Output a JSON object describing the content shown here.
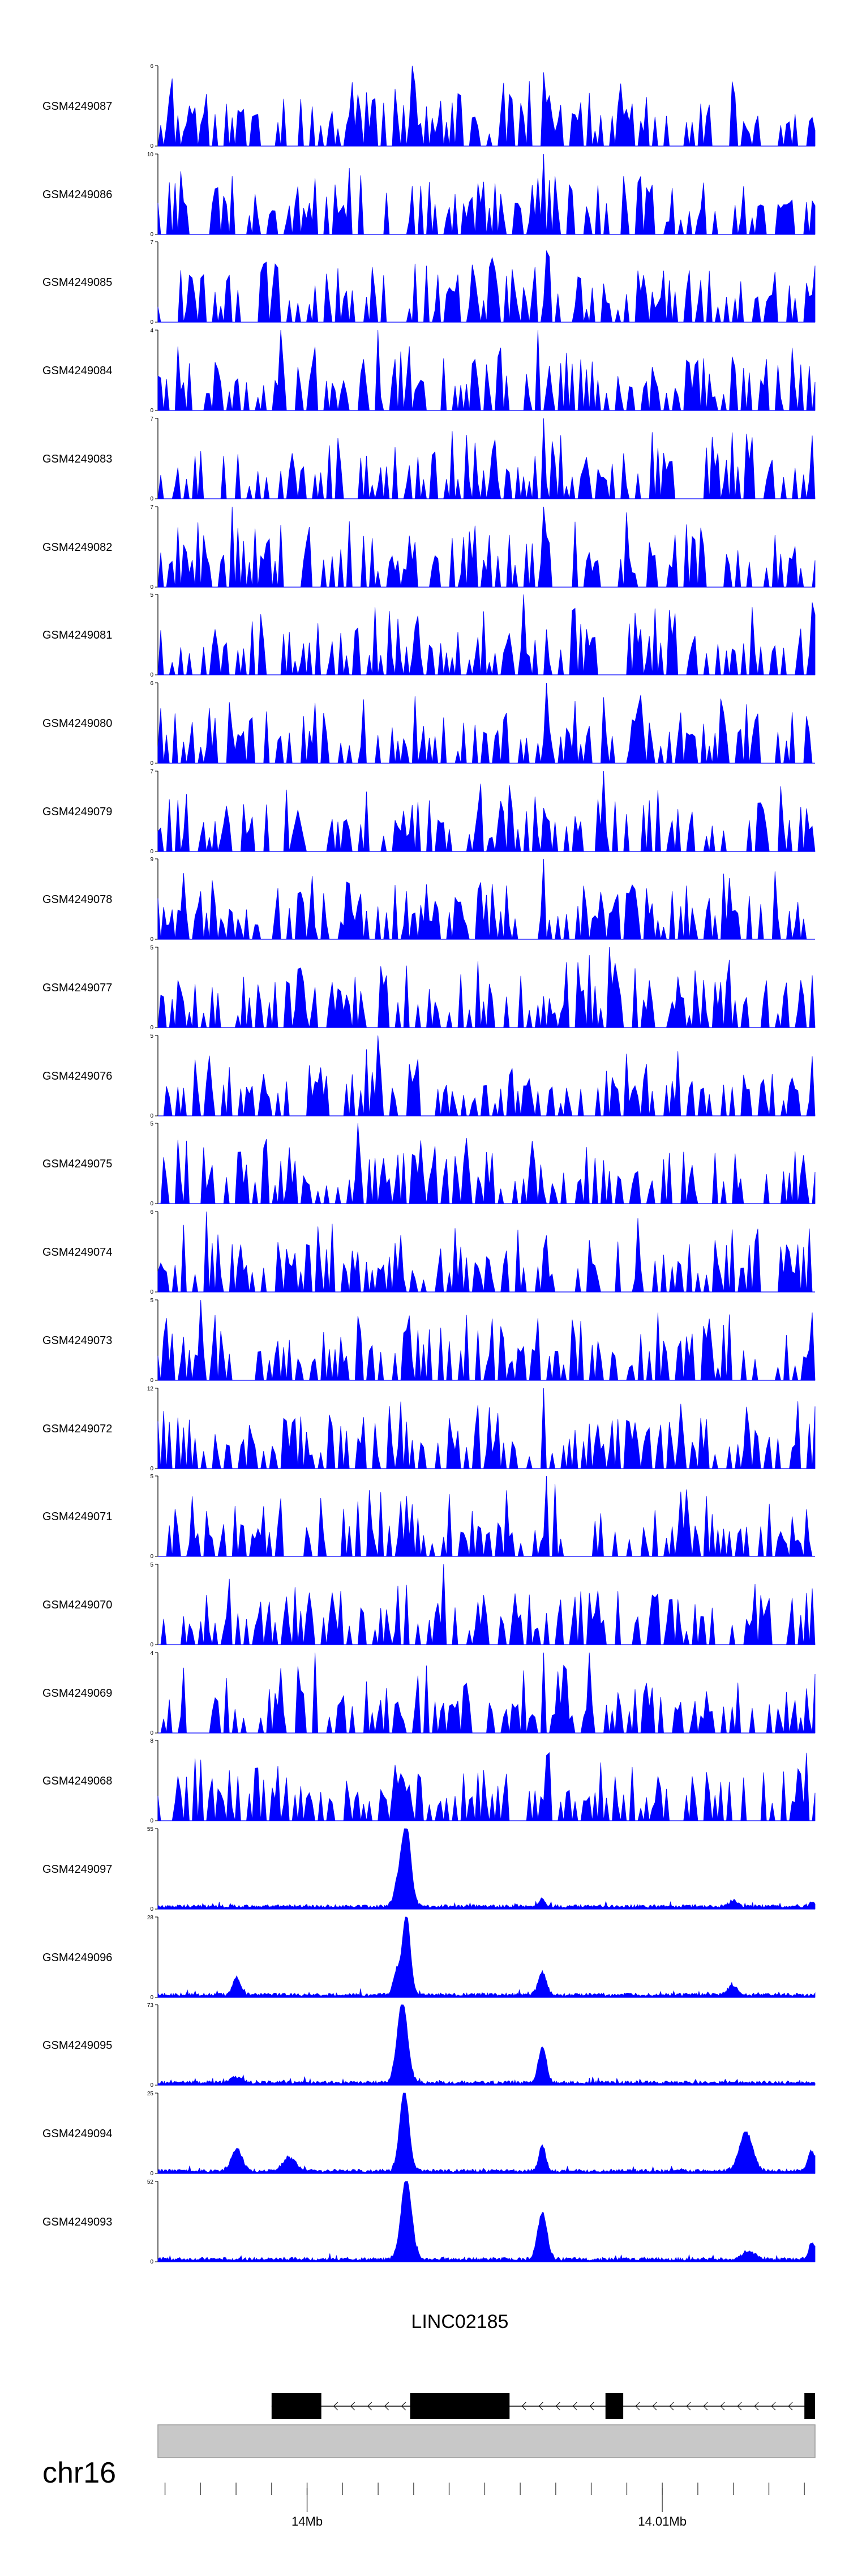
{
  "chart_data": {
    "type": "area",
    "title": "",
    "chromosome": "chr16",
    "x_ticks": [
      {
        "label": "14Mb",
        "value": 14.0
      },
      {
        "label": "14.01Mb",
        "value": 14.01
      }
    ],
    "xlim": [
      13.9958,
      14.0143
    ],
    "gene": {
      "name": "LINC02185",
      "strand": "-",
      "exons": [
        [
          13.999,
          14.0004
        ],
        [
          14.0029,
          14.0057
        ],
        [
          14.0084,
          14.0089
        ],
        [
          14.014,
          14.0143
        ]
      ]
    },
    "series": [
      {
        "name": "GSM4249087",
        "ymax": 6,
        "ytick_top": "6",
        "ytick_bottom": "0",
        "kind": "sparse",
        "seed": 87,
        "spikes": [
          [
            0.385,
            6.0
          ],
          [
            0.585,
            5.5
          ]
        ]
      },
      {
        "name": "GSM4249086",
        "ymax": 10,
        "ytick_top": "10",
        "ytick_bottom": "0",
        "kind": "sparse",
        "seed": 86,
        "spikes": [
          [
            0.585,
            10.0
          ],
          [
            0.385,
            6.0
          ],
          [
            0.58,
            7.0
          ]
        ]
      },
      {
        "name": "GSM4249085",
        "ymax": 7,
        "ytick_top": "7",
        "ytick_bottom": "0",
        "kind": "sparse",
        "seed": 85,
        "spikes": [
          [
            0.585,
            7.0
          ],
          [
            0.59,
            6.2
          ],
          [
            0.48,
            5.0
          ]
        ]
      },
      {
        "name": "GSM4249084",
        "ymax": 4,
        "ytick_top": "4",
        "ytick_bottom": "0",
        "kind": "sparse",
        "seed": 84,
        "spikes": [
          [
            0.185,
            4.0
          ],
          [
            0.58,
            4.0
          ],
          [
            0.335,
            4.0
          ]
        ]
      },
      {
        "name": "GSM4249083",
        "ymax": 7,
        "ytick_top": "7",
        "ytick_bottom": "0",
        "kind": "sparse",
        "seed": 83,
        "spikes": [
          [
            0.585,
            7.0
          ],
          [
            0.995,
            5.5
          ],
          [
            0.6,
            5.0
          ]
        ]
      },
      {
        "name": "GSM4249082",
        "ymax": 7,
        "ytick_top": "7",
        "ytick_bottom": "0",
        "kind": "sparse",
        "seed": 82,
        "spikes": [
          [
            0.585,
            7.0
          ],
          [
            0.115,
            7.0
          ],
          [
            0.715,
            6.5
          ]
        ]
      },
      {
        "name": "GSM4249081",
        "ymax": 5,
        "ytick_top": "5",
        "ytick_bottom": "0",
        "kind": "sparse",
        "seed": 81,
        "spikes": [
          [
            0.555,
            5.0
          ],
          [
            0.995,
            4.5
          ],
          [
            0.63,
            4.0
          ]
        ]
      },
      {
        "name": "GSM4249080",
        "ymax": 6,
        "ytick_top": "6",
        "ytick_bottom": "0",
        "kind": "sparse",
        "seed": 80,
        "spikes": [
          [
            0.59,
            6.0
          ],
          [
            0.24,
            4.5
          ],
          [
            0.985,
            3.5
          ]
        ]
      },
      {
        "name": "GSM4249079",
        "ymax": 7,
        "ytick_top": "7",
        "ytick_bottom": "0",
        "kind": "sparse",
        "seed": 79,
        "spikes": [
          [
            0.68,
            7.0
          ],
          [
            0.045,
            5.0
          ]
        ]
      },
      {
        "name": "GSM4249078",
        "ymax": 9,
        "ytick_top": "9",
        "ytick_bottom": "0",
        "kind": "sparse",
        "seed": 78,
        "spikes": [
          [
            0.585,
            9.0
          ],
          [
            0.53,
            6.0
          ]
        ]
      },
      {
        "name": "GSM4249077",
        "ymax": 5,
        "ytick_top": "5",
        "ytick_bottom": "0",
        "kind": "sparse",
        "seed": 77,
        "spikes": [
          [
            0.685,
            5.0
          ],
          [
            0.655,
            4.5
          ]
        ]
      },
      {
        "name": "GSM4249076",
        "ymax": 5,
        "ytick_top": "5",
        "ytick_bottom": "0",
        "kind": "sparse",
        "seed": 76,
        "spikes": [
          [
            0.335,
            5.0
          ],
          [
            0.055,
            3.5
          ]
        ]
      },
      {
        "name": "GSM4249075",
        "ymax": 5,
        "ytick_top": "5",
        "ytick_bottom": "0",
        "kind": "sparse",
        "seed": 75,
        "spikes": [
          [
            0.305,
            5.0
          ],
          [
            0.2,
            3.5
          ],
          [
            0.07,
            3.5
          ]
        ]
      },
      {
        "name": "GSM4249074",
        "ymax": 6,
        "ytick_top": "6",
        "ytick_bottom": "0",
        "kind": "sparse",
        "seed": 74,
        "spikes": [
          [
            0.075,
            6.0
          ],
          [
            0.73,
            5.5
          ],
          [
            0.04,
            5.0
          ]
        ]
      },
      {
        "name": "GSM4249073",
        "ymax": 5,
        "ytick_top": "5",
        "ytick_bottom": "0",
        "kind": "sparse",
        "seed": 73,
        "spikes": [
          [
            0.065,
            5.0
          ],
          [
            0.305,
            4.0
          ]
        ]
      },
      {
        "name": "GSM4249072",
        "ymax": 12,
        "ytick_top": "12",
        "ytick_bottom": "0",
        "kind": "sparse",
        "seed": 72,
        "spikes": [
          [
            0.585,
            12.0
          ],
          [
            0.37,
            10.0
          ],
          [
            0.38,
            7.0
          ]
        ]
      },
      {
        "name": "GSM4249071",
        "ymax": 5,
        "ytick_top": "5",
        "ytick_bottom": "0",
        "kind": "sparse",
        "seed": 71,
        "spikes": [
          [
            0.59,
            5.0
          ],
          [
            0.605,
            4.5
          ],
          [
            0.34,
            4.0
          ]
        ]
      },
      {
        "name": "GSM4249070",
        "ymax": 5,
        "ytick_top": "5",
        "ytick_bottom": "0",
        "kind": "sparse",
        "seed": 70,
        "spikes": [
          [
            0.435,
            5.0
          ],
          [
            0.995,
            3.5
          ]
        ]
      },
      {
        "name": "GSM4249069",
        "ymax": 4,
        "ytick_top": "4",
        "ytick_bottom": "0",
        "kind": "sparse",
        "seed": 69,
        "spikes": [
          [
            0.585,
            4.0
          ],
          [
            0.655,
            4.0
          ],
          [
            0.24,
            4.0
          ]
        ]
      },
      {
        "name": "GSM4249068",
        "ymax": 8,
        "ytick_top": "8",
        "ytick_bottom": "0",
        "kind": "sparse",
        "seed": 68,
        "spikes": [
          [
            0.585,
            8.0
          ],
          [
            0.59,
            6.5
          ]
        ]
      },
      {
        "name": "GSM4249097",
        "ymax": 55,
        "ytick_top": "55",
        "ytick_bottom": "0",
        "kind": "dense",
        "seed": 97,
        "peaks": [
          [
            0.378,
            55,
            0.007
          ],
          [
            0.365,
            14,
            0.006
          ],
          [
            0.585,
            6,
            0.004
          ],
          [
            0.875,
            4,
            0.006
          ],
          [
            0.995,
            3,
            0.004
          ]
        ]
      },
      {
        "name": "GSM4249096",
        "ymax": 28,
        "ytick_top": "28",
        "ytick_bottom": "0",
        "kind": "dense",
        "seed": 96,
        "peaks": [
          [
            0.378,
            28,
            0.006
          ],
          [
            0.363,
            8,
            0.005
          ],
          [
            0.585,
            8,
            0.006
          ],
          [
            0.12,
            6,
            0.006
          ],
          [
            0.875,
            3,
            0.008
          ]
        ]
      },
      {
        "name": "GSM4249095",
        "ymax": 73,
        "ytick_top": "73",
        "ytick_bottom": "0",
        "kind": "dense",
        "seed": 95,
        "peaks": [
          [
            0.372,
            73,
            0.008
          ],
          [
            0.585,
            32,
            0.006
          ],
          [
            0.12,
            5,
            0.008
          ]
        ]
      },
      {
        "name": "GSM4249094",
        "ymax": 25,
        "ytick_top": "25",
        "ytick_bottom": "0",
        "kind": "dense",
        "seed": 94,
        "peaks": [
          [
            0.375,
            25,
            0.007
          ],
          [
            0.585,
            8,
            0.005
          ],
          [
            0.12,
            7,
            0.008
          ],
          [
            0.895,
            12,
            0.01
          ],
          [
            0.995,
            6,
            0.006
          ],
          [
            0.2,
            4,
            0.01
          ]
        ]
      },
      {
        "name": "GSM4249093",
        "ymax": 52,
        "ytick_top": "52",
        "ytick_bottom": "0",
        "kind": "dense",
        "seed": 93,
        "peaks": [
          [
            0.378,
            52,
            0.008
          ],
          [
            0.585,
            30,
            0.007
          ],
          [
            0.995,
            10,
            0.005
          ],
          [
            0.9,
            5,
            0.01
          ]
        ]
      }
    ]
  }
}
